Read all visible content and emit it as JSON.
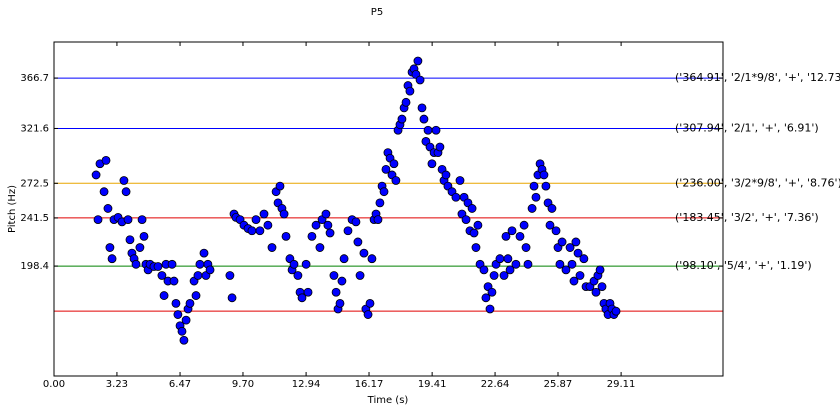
{
  "chart_data": {
    "type": "scatter",
    "title": "P5",
    "xlabel": "Time (s)",
    "ylabel": "Pitch (Hz)",
    "xlim": [
      0,
      34.34
    ],
    "ylim": [
      100,
      399
    ],
    "xticks": [
      {
        "value": 0,
        "label": "0.00"
      },
      3.23,
      6.47,
      {
        "value": 9.7,
        "label": "9.70"
      },
      12.94,
      16.17,
      19.41,
      22.64,
      25.87,
      29.11
    ],
    "yticks": [
      198.4,
      241.5,
      272.5,
      321.6,
      366.7
    ],
    "hlines": [
      {
        "value": 366.7,
        "color": "#0000ff",
        "label": "('364.91', '2/1*9/8', '+', '12.73')"
      },
      {
        "value": 321.6,
        "color": "#0000ff",
        "label": "('307.94', '2/1', '+', '6.91')"
      },
      {
        "value": 272.5,
        "color": "#e8a600",
        "label": "('236.00', '3/2*9/8', '+', '8.76')"
      },
      {
        "value": 241.5,
        "color": "#e00000",
        "label": "('183.45', '3/2', '+', '7.36')"
      },
      {
        "value": 198.4,
        "color": "#008000",
        "label": "('98.10', '5/4', '+', '1.19')"
      },
      {
        "value": 158.1,
        "color": "#e00000"
      }
    ],
    "color": "#0000ff",
    "x": [
      2.16,
      2.26,
      2.36,
      2.57,
      2.67,
      2.77,
      2.87,
      2.98,
      3.08,
      3.29,
      3.49,
      3.59,
      3.7,
      3.8,
      3.9,
      4.0,
      4.11,
      4.21,
      4.41,
      4.52,
      4.62,
      4.72,
      4.83,
      4.93,
      5.13,
      5.34,
      5.54,
      5.65,
      5.75,
      5.85,
      6.06,
      6.16,
      6.26,
      6.36,
      6.47,
      6.57,
      6.67,
      6.78,
      6.88,
      6.98,
      7.19,
      7.29,
      7.39,
      7.49,
      7.7,
      7.8,
      7.9,
      8.01,
      9.03,
      9.14,
      9.24,
      9.34,
      9.55,
      9.75,
      9.96,
      10.16,
      10.37,
      10.57,
      10.78,
      10.98,
      11.19,
      11.4,
      11.5,
      11.6,
      11.7,
      11.81,
      11.91,
      12.11,
      12.22,
      12.32,
      12.52,
      12.63,
      12.73,
      12.94,
      13.04,
      13.24,
      13.45,
      13.65,
      13.76,
      13.96,
      14.06,
      14.17,
      14.37,
      14.48,
      14.58,
      14.68,
      14.78,
      14.89,
      15.09,
      15.3,
      15.5,
      15.6,
      15.71,
      15.91,
      16.01,
      16.12,
      16.22,
      16.32,
      16.43,
      16.53,
      16.63,
      16.73,
      16.84,
      16.94,
      17.04,
      17.14,
      17.25,
      17.35,
      17.45,
      17.55,
      17.66,
      17.76,
      17.86,
      17.97,
      18.07,
      18.17,
      18.27,
      18.38,
      18.48,
      18.58,
      18.68,
      18.79,
      18.89,
      18.99,
      19.09,
      19.2,
      19.3,
      19.4,
      19.51,
      19.61,
      19.71,
      19.81,
      19.92,
      20.02,
      20.12,
      20.22,
      20.43,
      20.63,
      20.84,
      20.94,
      21.05,
      21.15,
      21.25,
      21.35,
      21.46,
      21.56,
      21.66,
      21.76,
      21.87,
      22.07,
      22.17,
      22.28,
      22.38,
      22.48,
      22.59,
      22.69,
      22.89,
      23.1,
      23.2,
      23.3,
      23.41,
      23.51,
      23.71,
      23.92,
      24.13,
      24.23,
      24.33,
      24.54,
      24.64,
      24.74,
      24.84,
      24.95,
      25.05,
      25.15,
      25.25,
      25.36,
      25.46,
      25.56,
      25.77,
      25.87,
      25.97,
      26.08,
      26.28,
      26.49,
      26.59,
      26.69,
      26.79,
      26.9,
      27.0,
      27.2,
      27.31,
      27.51,
      27.72,
      27.82,
      27.92,
      28.03,
      28.13,
      28.23,
      28.33,
      28.44,
      28.54,
      28.64,
      28.74,
      28.85
    ],
    "values": [
      280,
      240,
      290,
      265,
      293,
      250,
      215,
      205,
      240,
      242,
      238,
      275,
      265,
      240,
      222,
      210,
      205,
      200,
      215,
      240,
      225,
      200,
      195,
      200,
      198,
      198,
      190,
      172,
      200,
      185,
      200,
      185,
      165,
      155,
      145,
      140,
      132,
      150,
      160,
      165,
      185,
      172,
      190,
      200,
      210,
      190,
      200,
      195,
      190,
      170,
      245,
      242,
      240,
      235,
      232,
      230,
      240,
      230,
      245,
      235,
      215,
      265,
      255,
      270,
      250,
      245,
      225,
      205,
      195,
      200,
      190,
      175,
      170,
      200,
      175,
      225,
      235,
      215,
      240,
      245,
      235,
      228,
      190,
      175,
      160,
      165,
      185,
      205,
      230,
      240,
      238,
      220,
      190,
      210,
      160,
      155,
      165,
      205,
      240,
      245,
      240,
      255,
      270,
      265,
      285,
      300,
      295,
      280,
      290,
      275,
      320,
      325,
      330,
      340,
      345,
      360,
      355,
      372,
      375,
      370,
      382,
      365,
      340,
      330,
      310,
      320,
      305,
      290,
      300,
      320,
      300,
      305,
      285,
      275,
      280,
      270,
      265,
      260,
      275,
      245,
      260,
      240,
      255,
      230,
      250,
      228,
      215,
      235,
      200,
      195,
      170,
      180,
      160,
      175,
      190,
      200,
      205,
      190,
      225,
      205,
      195,
      230,
      200,
      225,
      235,
      215,
      200,
      250,
      270,
      260,
      280,
      290,
      285,
      280,
      270,
      255,
      235,
      250,
      230,
      215,
      200,
      220,
      195,
      215,
      200,
      185,
      220,
      210,
      190,
      205,
      180,
      180,
      185,
      175,
      190,
      195,
      180,
      165,
      160,
      155,
      165,
      160,
      155,
      158
    ]
  }
}
